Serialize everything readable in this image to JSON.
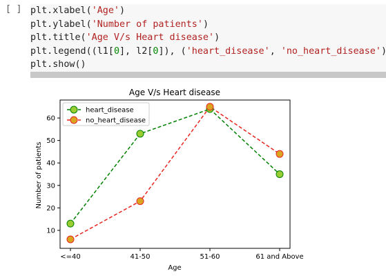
{
  "notebook": {
    "cell_prompt": "[ ]",
    "code_lines": [
      [
        {
          "t": "plt.xlabel("
        },
        {
          "t": "'Age'",
          "c": "str"
        },
        {
          "t": ")"
        }
      ],
      [
        {
          "t": "plt.ylabel("
        },
        {
          "t": "'Number of patients'",
          "c": "str"
        },
        {
          "t": ")"
        }
      ],
      [
        {
          "t": "plt.title("
        },
        {
          "t": "'Age V/s Heart disease'",
          "c": "str"
        },
        {
          "t": ")"
        }
      ],
      [
        {
          "t": "plt.legend((l1["
        },
        {
          "t": "0",
          "c": "num"
        },
        {
          "t": "], l2["
        },
        {
          "t": "0",
          "c": "num"
        },
        {
          "t": "]), ("
        },
        {
          "t": "'heart_disease'",
          "c": "str"
        },
        {
          "t": ", "
        },
        {
          "t": "'no_heart_disease'",
          "c": "str"
        },
        {
          "t": "))"
        }
      ],
      [
        {
          "t": "plt.show()"
        }
      ]
    ]
  },
  "colors": {
    "code_bg": "#f7f7f7",
    "string": "#b22222",
    "number": "#008800",
    "series_heart": "#008000",
    "series_no_heart": "#e8231d",
    "marker_heart_fill": "#9acd32",
    "marker_no_heart_fill": "#daa520"
  },
  "chart_data": {
    "type": "line",
    "title": "Age V/s Heart disease",
    "xlabel": "Age",
    "ylabel": "Number of patients",
    "categories": [
      "<=40",
      "41-50",
      "51-60",
      "61 and Above"
    ],
    "yticks": [
      10,
      20,
      30,
      40,
      50,
      60
    ],
    "ylim": [
      2,
      68
    ],
    "legend_position": "top-left",
    "grid": false,
    "series": [
      {
        "name": "heart_disease",
        "values": [
          13,
          53,
          64,
          35
        ],
        "line_style": "dashed",
        "marker": "circle"
      },
      {
        "name": "no_heart_disease",
        "values": [
          6,
          23,
          65,
          44
        ],
        "line_style": "dashed",
        "marker": "circle"
      }
    ]
  }
}
